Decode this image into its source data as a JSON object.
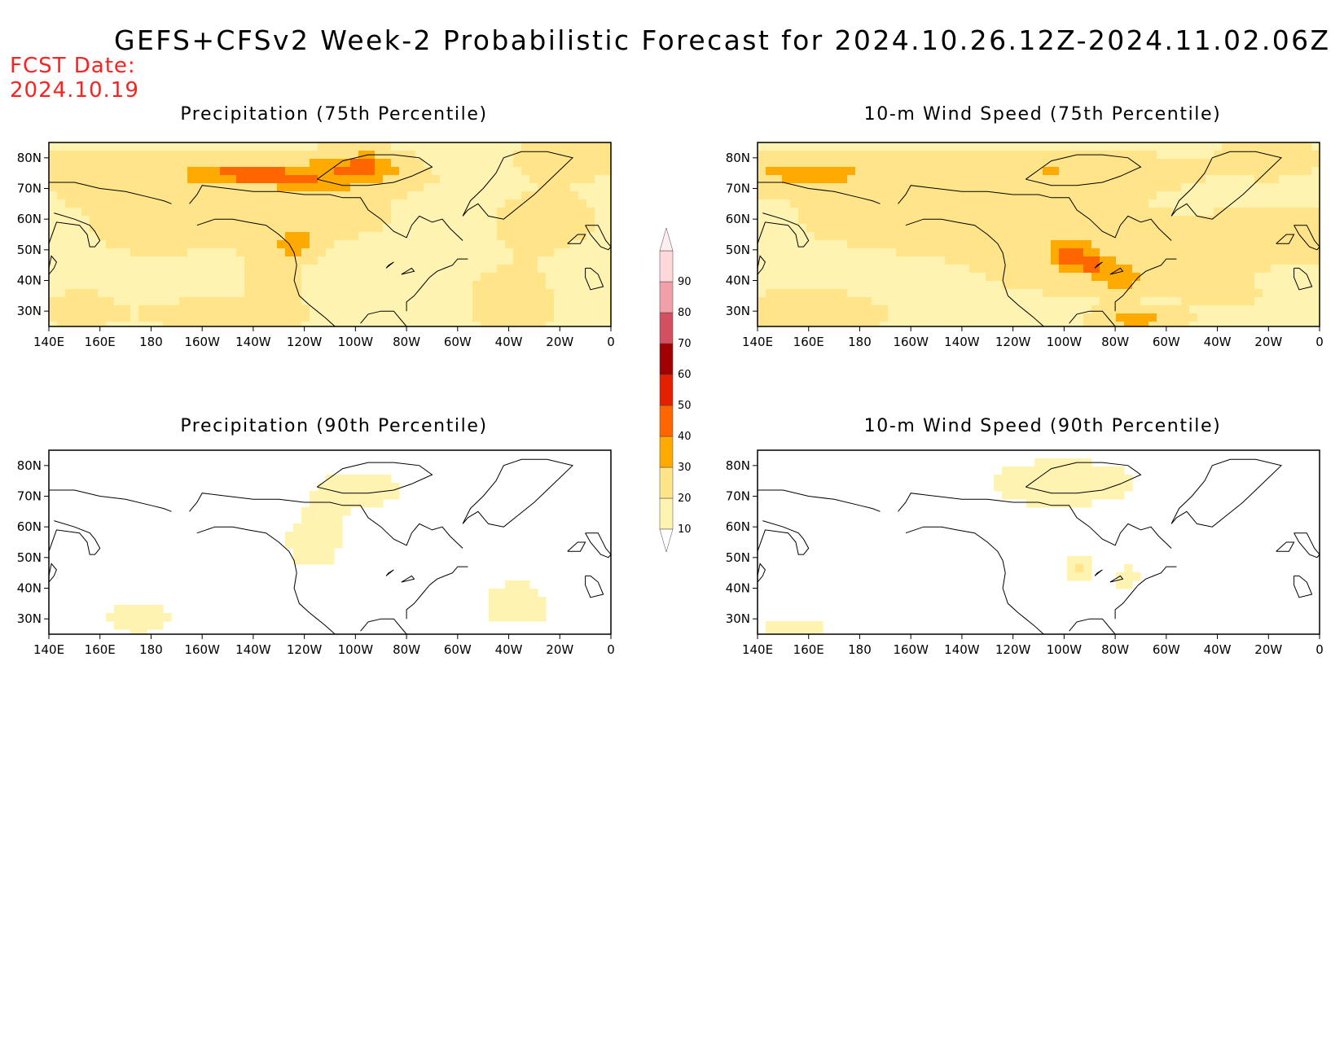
{
  "title": "GEFS+CFSv2 Week-2 Probabilistic Forecast for 2024.10.26.12Z-2024.11.02.06Z",
  "fcst_date": {
    "label": "FCST Date:",
    "value": "2024.10.19"
  },
  "panels": [
    {
      "title": "Precipitation (75th Percentile)"
    },
    {
      "title": "10-m Wind Speed (75th Percentile)"
    },
    {
      "title": "Precipitation (90th Percentile)"
    },
    {
      "title": "10-m Wind Speed (90th Percentile)"
    }
  ],
  "axes": {
    "lon_ticks": [
      "140E",
      "160E",
      "180",
      "160W",
      "140W",
      "120W",
      "100W",
      "80W",
      "60W",
      "40W",
      "20W",
      "0"
    ],
    "lat_ticks": [
      "80N",
      "70N",
      "60N",
      "50N",
      "40N",
      "30N"
    ]
  },
  "colorbar": {
    "levels": [
      "10",
      "20",
      "30",
      "40",
      "50",
      "60",
      "70",
      "80",
      "90"
    ],
    "colors": [
      "#fff3b2",
      "#ffe48a",
      "#ffaa00",
      "#ff6600",
      "#e32000",
      "#a00000",
      "#d25060",
      "#f0a0a8",
      "#ffd8dc"
    ]
  },
  "chart_data": [
    {
      "type": "heatmap",
      "title": "Precipitation (75th Percentile)",
      "blobs": [
        {
          "lon": 145,
          "lat": 80,
          "rlon": 20,
          "rlat": 6,
          "v": 20
        },
        {
          "lon": 170,
          "lat": 70,
          "rlon": 30,
          "rlat": 9,
          "v": 25
        },
        {
          "lon": 195,
          "lat": 75,
          "rlon": 35,
          "rlat": 8,
          "v": 25
        },
        {
          "lon": 215,
          "lat": 75,
          "rlon": 20,
          "rlat": 3,
          "v": 45
        },
        {
          "lon": 235,
          "lat": 73,
          "rlon": 40,
          "rlat": 4,
          "v": 32
        },
        {
          "lon": 250,
          "lat": 75,
          "rlon": 25,
          "rlat": 6,
          "v": 40
        },
        {
          "lon": 265,
          "lat": 78,
          "rlon": 12,
          "rlat": 4,
          "v": 45
        },
        {
          "lon": 250,
          "lat": 58,
          "rlon": 30,
          "rlat": 12,
          "v": 25
        },
        {
          "lon": 237,
          "lat": 52,
          "rlon": 8,
          "rlat": 5,
          "v": 40
        },
        {
          "lon": 228,
          "lat": 40,
          "rlon": 10,
          "rlat": 12,
          "v": 33
        },
        {
          "lon": 186,
          "lat": 55,
          "rlon": 30,
          "rlat": 8,
          "v": 25
        },
        {
          "lon": 200,
          "lat": 40,
          "rlon": 15,
          "rlat": 6,
          "v": 12
        },
        {
          "lon": 210,
          "lat": 29,
          "rlon": 28,
          "rlat": 5,
          "v": 32
        },
        {
          "lon": 152,
          "lat": 30,
          "rlon": 14,
          "rlat": 6,
          "v": 28
        },
        {
          "lon": 335,
          "lat": 58,
          "rlon": 22,
          "rlat": 12,
          "v": 26
        },
        {
          "lon": 322,
          "lat": 33,
          "rlon": 14,
          "rlat": 8,
          "v": 35
        },
        {
          "lon": 295,
          "lat": 48,
          "rlon": 15,
          "rlat": 6,
          "v": 18
        },
        {
          "lon": 345,
          "lat": 80,
          "rlon": 20,
          "rlat": 6,
          "v": 30
        },
        {
          "lon": 262,
          "lat": 40,
          "rlon": 20,
          "rlat": 12,
          "v": 8
        },
        {
          "lon": 352,
          "lat": 42,
          "rlon": 12,
          "rlat": 8,
          "v": 8
        }
      ]
    },
    {
      "type": "heatmap",
      "title": "10-m Wind Speed (75th Percentile)",
      "blobs": [
        {
          "lon": 160,
          "lat": 75,
          "rlon": 40,
          "rlat": 6,
          "v": 32
        },
        {
          "lon": 205,
          "lat": 60,
          "rlon": 40,
          "rlat": 9,
          "v": 32
        },
        {
          "lon": 255,
          "lat": 75,
          "rlon": 45,
          "rlat": 6,
          "v": 38
        },
        {
          "lon": 270,
          "lat": 50,
          "rlon": 40,
          "rlat": 12,
          "v": 35
        },
        {
          "lon": 262,
          "lat": 48,
          "rlon": 6,
          "rlat": 4,
          "v": 55
        },
        {
          "lon": 272,
          "lat": 45,
          "rlon": 5,
          "rlat": 3,
          "v": 50
        },
        {
          "lon": 282,
          "lat": 40,
          "rlon": 8,
          "rlat": 4,
          "v": 45
        },
        {
          "lon": 163,
          "lat": 30,
          "rlon": 22,
          "rlat": 6,
          "v": 38
        },
        {
          "lon": 288,
          "lat": 27,
          "rlon": 14,
          "rlat": 3,
          "v": 50
        },
        {
          "lon": 345,
          "lat": 55,
          "rlon": 25,
          "rlat": 8,
          "v": 32
        },
        {
          "lon": 340,
          "lat": 80,
          "rlon": 15,
          "rlat": 5,
          "v": 38
        },
        {
          "lon": 195,
          "lat": 38,
          "rlon": 20,
          "rlat": 6,
          "v": 12
        },
        {
          "lon": 325,
          "lat": 35,
          "rlon": 25,
          "rlat": 8,
          "v": 22
        }
      ]
    },
    {
      "type": "heatmap",
      "title": "Precipitation (90th Percentile)",
      "blobs": [
        {
          "lon": 150,
          "lat": 75,
          "rlon": 25,
          "rlat": 6,
          "v": 6
        },
        {
          "lon": 262,
          "lat": 72,
          "rlon": 20,
          "rlat": 7,
          "v": 14
        },
        {
          "lon": 245,
          "lat": 55,
          "rlon": 15,
          "rlat": 12,
          "v": 14
        },
        {
          "lon": 175,
          "lat": 30,
          "rlon": 10,
          "rlat": 4,
          "v": 22
        },
        {
          "lon": 322,
          "lat": 35,
          "rlon": 10,
          "rlat": 6,
          "v": 20
        },
        {
          "lon": 202,
          "lat": 40,
          "rlon": 20,
          "rlat": 8,
          "v": 6
        },
        {
          "lon": 270,
          "lat": 52,
          "rlon": 20,
          "rlat": 12,
          "v": 6
        },
        {
          "lon": 335,
          "lat": 72,
          "rlon": 15,
          "rlat": 8,
          "v": 6
        },
        {
          "lon": 150,
          "lat": 42,
          "rlon": 10,
          "rlat": 6,
          "v": 6
        }
      ]
    },
    {
      "type": "heatmap",
      "title": "10-m Wind Speed (90th Percentile)",
      "blobs": [
        {
          "lon": 260,
          "lat": 74,
          "rlon": 22,
          "rlat": 6,
          "v": 18
        },
        {
          "lon": 266,
          "lat": 47,
          "rlon": 4,
          "rlat": 3,
          "v": 30
        },
        {
          "lon": 284,
          "lat": 43,
          "rlon": 4,
          "rlat": 3,
          "v": 25
        },
        {
          "lon": 190,
          "lat": 38,
          "rlon": 35,
          "rlat": 6,
          "v": 6
        },
        {
          "lon": 320,
          "lat": 40,
          "rlon": 30,
          "rlat": 10,
          "v": 6
        },
        {
          "lon": 155,
          "lat": 27,
          "rlon": 10,
          "rlat": 3,
          "v": 22
        },
        {
          "lon": 320,
          "lat": 72,
          "rlon": 25,
          "rlat": 8,
          "v": 6
        },
        {
          "lon": 275,
          "lat": 62,
          "rlon": 25,
          "rlat": 6,
          "v": 6
        }
      ]
    }
  ]
}
